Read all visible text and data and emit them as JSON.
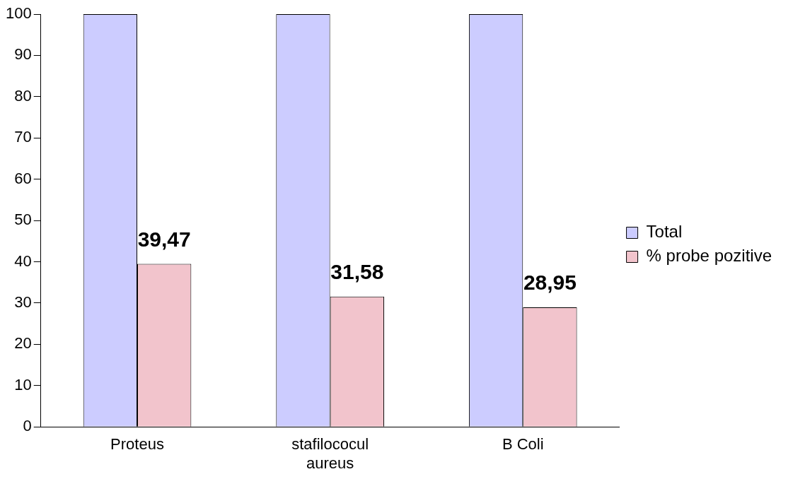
{
  "chart_data": {
    "type": "bar",
    "categories": [
      "Proteus",
      "stafilococul aureus",
      "B Coli"
    ],
    "series": [
      {
        "name": "Total",
        "color": "#ccccff",
        "values": [
          100,
          100,
          100
        ]
      },
      {
        "name": "% probe pozitive",
        "color": "#f2c4cc",
        "values": [
          39.47,
          31.58,
          28.95
        ],
        "value_labels": [
          "39,47",
          "31,58",
          "28,95"
        ]
      }
    ],
    "ylim": [
      0,
      100
    ],
    "yticks": [
      0,
      10,
      20,
      30,
      40,
      50,
      60,
      70,
      80,
      90,
      100
    ],
    "grid": false,
    "legend": "right"
  }
}
